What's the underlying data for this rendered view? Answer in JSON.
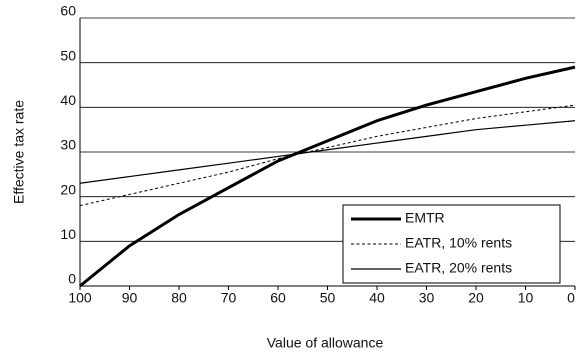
{
  "chart_data": {
    "type": "line",
    "x_label": "Value of allowance",
    "y_label": "Effective tax rate",
    "x": [
      100,
      90,
      80,
      70,
      60,
      50,
      40,
      30,
      20,
      10,
      0
    ],
    "series": [
      {
        "name": "EMTR",
        "color": "#000000",
        "width": 3,
        "dash": "solid",
        "values": [
          0,
          9,
          16,
          22,
          28,
          32.5,
          37,
          40.5,
          43.5,
          46.5,
          49
        ]
      },
      {
        "name": "EATR, 10% rents",
        "color": "#000000",
        "width": 1,
        "dash": "dotted",
        "values": [
          18,
          20.5,
          23,
          25.5,
          28.5,
          31,
          33.5,
          35.5,
          37.5,
          39,
          40.5
        ]
      },
      {
        "name": "EATR, 20% rents",
        "color": "#000000",
        "width": 1.2,
        "dash": "solid",
        "values": [
          23,
          24.5,
          26,
          27.5,
          29,
          30.5,
          32,
          33.5,
          35,
          36,
          37
        ]
      }
    ],
    "xlim": [
      100,
      0
    ],
    "xticks": [
      100,
      90,
      80,
      70,
      60,
      50,
      40,
      30,
      20,
      10,
      0
    ],
    "ylim": [
      0,
      60
    ],
    "yticks": [
      0,
      10,
      20,
      30,
      40,
      50,
      60
    ],
    "grid": true,
    "legend": "lower right"
  }
}
